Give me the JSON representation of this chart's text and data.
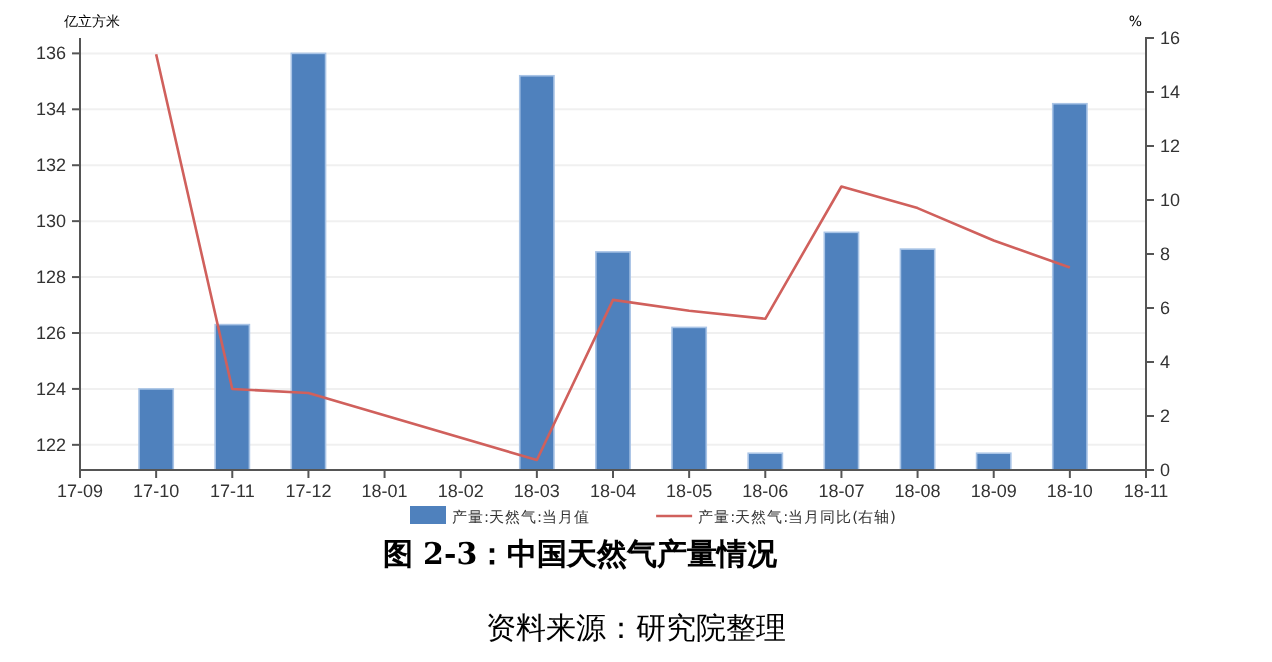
{
  "chart_data": {
    "type": "bar",
    "title": "图 2-3：中国天然气产量情况",
    "ylabel": "亿立方米",
    "y2label": "%",
    "annotations": [
      "资料来源：研究院整理"
    ],
    "categories": [
      "17-09",
      "17-10",
      "17-11",
      "17-12",
      "18-01",
      "18-02",
      "18-03",
      "18-04",
      "18-05",
      "18-06",
      "18-07",
      "18-08",
      "18-09",
      "18-10",
      "18-11"
    ],
    "series": [
      {
        "name": "产量:天然气:当月值",
        "color": "#4f81bd",
        "values": [
          null,
          124.0,
          126.3,
          136.0,
          null,
          null,
          135.2,
          128.9,
          126.2,
          121.7,
          129.6,
          129.0,
          121.7,
          134.2,
          null
        ]
      },
      {
        "name": "产量:天然气:当月同比(右轴)",
        "type": "line",
        "axis": "y2",
        "color": "#d0605c",
        "values": [
          null,
          15.4,
          3.0,
          2.85,
          null,
          null,
          0.37,
          6.3,
          5.9,
          5.6,
          10.5,
          9.7,
          8.5,
          7.5,
          null
        ]
      }
    ],
    "ylim": [
      121.1,
      136.55
    ],
    "yticks": [
      122,
      124,
      126,
      128,
      130,
      132,
      134,
      136
    ],
    "y2lim": [
      0,
      16
    ],
    "y2ticks": [
      0,
      2,
      4,
      6,
      8,
      10,
      12,
      14,
      16
    ],
    "grid": "y",
    "legend": "bottom",
    "line_style": "solid",
    "marker": "none"
  }
}
